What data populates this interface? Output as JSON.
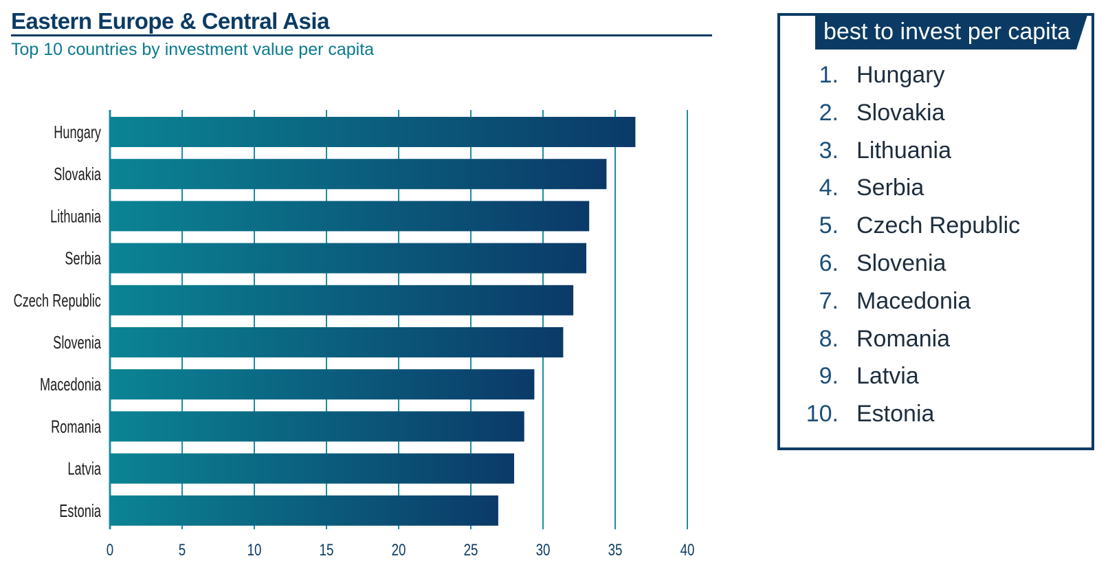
{
  "title": "Eastern Europe & Central Asia",
  "subtitle": "Top 10 countries by investment value per capita",
  "colors": {
    "navy": "#0b3b64",
    "teal": "#0b7a8f",
    "bar_start": "#0b8494",
    "bar_end": "#0b3a68",
    "grid": "#1a8ea0"
  },
  "chart_data": {
    "type": "bar",
    "orientation": "horizontal",
    "categories": [
      "Hungary",
      "Slovakia",
      "Lithuania",
      "Serbia",
      "Czech Republic",
      "Slovenia",
      "Macedonia",
      "Romania",
      "Latvia",
      "Estonia"
    ],
    "values": [
      36.4,
      34.4,
      33.2,
      33.0,
      32.1,
      31.4,
      29.4,
      28.7,
      28.0,
      26.9
    ],
    "xlim": [
      0,
      40
    ],
    "xticks": [
      "0",
      "5",
      "10",
      "15",
      "20",
      "25",
      "30",
      "35",
      "40"
    ],
    "grid": "vertical"
  },
  "ranking": {
    "header": "best to invest per capita",
    "items": [
      {
        "num": "1.",
        "name": "Hungary"
      },
      {
        "num": "2.",
        "name": "Slovakia"
      },
      {
        "num": "3.",
        "name": "Lithuania"
      },
      {
        "num": "4.",
        "name": "Serbia"
      },
      {
        "num": "5.",
        "name": "Czech Republic"
      },
      {
        "num": "6.",
        "name": "Slovenia"
      },
      {
        "num": "7.",
        "name": "Macedonia"
      },
      {
        "num": "8.",
        "name": "Romania"
      },
      {
        "num": "9.",
        "name": "Latvia"
      },
      {
        "num": "10.",
        "name": "Estonia"
      }
    ]
  }
}
